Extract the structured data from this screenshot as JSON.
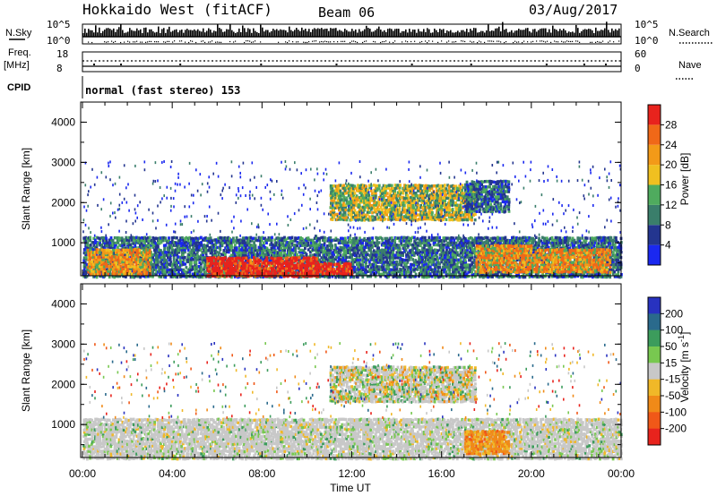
{
  "header": {
    "station": "Hokkaido West (fitACF)",
    "beam": "Beam 06",
    "date": "03/Aug/2017"
  },
  "top_panel": {
    "nsky_label": "N.Sky",
    "nsearch_label": "N.Search",
    "noise_ticks": [
      "10^5",
      "10^0"
    ],
    "freq_label": "Freq.",
    "freq_unit": "[MHz]",
    "freq_ticks": [
      "18",
      "8"
    ],
    "nave_label": "Nave",
    "nave_ticks": [
      "60",
      "0"
    ],
    "cpid_label": "CPID",
    "cpid_value": "normal (fast stereo) 153"
  },
  "chart_data": [
    {
      "type": "heatmap",
      "name": "power",
      "ylabel": "Slant Range [km]",
      "yticks": [
        "1000",
        "2000",
        "3000",
        "4000"
      ],
      "ylim": [
        180,
        4500
      ],
      "xlim": [
        0,
        24
      ],
      "xticks": [
        "00:00",
        "04:00",
        "08:00",
        "12:00",
        "16:00",
        "20:00",
        "00:00"
      ],
      "colorbar": {
        "label": "Power [dB]",
        "ticks": [
          "4",
          "8",
          "12",
          "16",
          "20",
          "24",
          "28"
        ],
        "colors": [
          "#1a28f0",
          "#23358f",
          "#3a7e6b",
          "#4fab5e",
          "#f0c020",
          "#f39a18",
          "#f06818",
          "#e8231d"
        ]
      },
      "regions": [
        {
          "t": [
            0,
            24
          ],
          "r": [
            180,
            1200
          ],
          "level": "mid"
        },
        {
          "t": [
            0.2,
            3.0
          ],
          "r": [
            250,
            900
          ],
          "level": "high"
        },
        {
          "t": [
            5.5,
            10.5
          ],
          "r": [
            200,
            700
          ],
          "level": "very_high"
        },
        {
          "t": [
            10.5,
            12.0
          ],
          "r": [
            250,
            550
          ],
          "level": "very_high"
        },
        {
          "t": [
            11.0,
            17.5
          ],
          "r": [
            1600,
            2500
          ],
          "level": "mid_high"
        },
        {
          "t": [
            17.5,
            20.0
          ],
          "r": [
            300,
            1000
          ],
          "level": "high"
        },
        {
          "t": [
            20.0,
            23.5
          ],
          "r": [
            300,
            900
          ],
          "level": "high"
        },
        {
          "t": [
            17.0,
            19.0
          ],
          "r": [
            1800,
            2600
          ],
          "level": "mid"
        },
        {
          "t": [
            0,
            24
          ],
          "r": [
            1200,
            3100
          ],
          "level": "low_sparse"
        }
      ]
    },
    {
      "type": "heatmap",
      "name": "velocity",
      "ylabel": "Slant Range [km]",
      "yticks": [
        "1000",
        "2000",
        "3000",
        "4000"
      ],
      "ylim": [
        180,
        4500
      ],
      "xlim": [
        0,
        24
      ],
      "xlabel": "Time UT",
      "xticks": [
        "00:00",
        "04:00",
        "08:00",
        "12:00",
        "16:00",
        "20:00",
        "00:00"
      ],
      "colorbar": {
        "label": "Velocity [m s",
        "label_sup": "-1",
        "label_end": "]",
        "ticks": [
          "200",
          "100",
          "50",
          "15",
          "-15",
          "-50",
          "-100",
          "-200"
        ],
        "colors": [
          "#2832c0",
          "#2a6a8c",
          "#3c9c5c",
          "#78c850",
          "#c8c8c8",
          "#f0b828",
          "#f08a18",
          "#f05818",
          "#e8231d"
        ]
      },
      "regions": [
        {
          "t": [
            0,
            24
          ],
          "r": [
            180,
            1200
          ],
          "level": "ground"
        },
        {
          "t": [
            11.0,
            17.5
          ],
          "r": [
            1600,
            2500
          ],
          "level": "mixed"
        },
        {
          "t": [
            17.0,
            19.0
          ],
          "r": [
            300,
            900
          ],
          "level": "neg_mid"
        },
        {
          "t": [
            0,
            24
          ],
          "r": [
            1200,
            3100
          ],
          "level": "sparse"
        }
      ]
    }
  ]
}
